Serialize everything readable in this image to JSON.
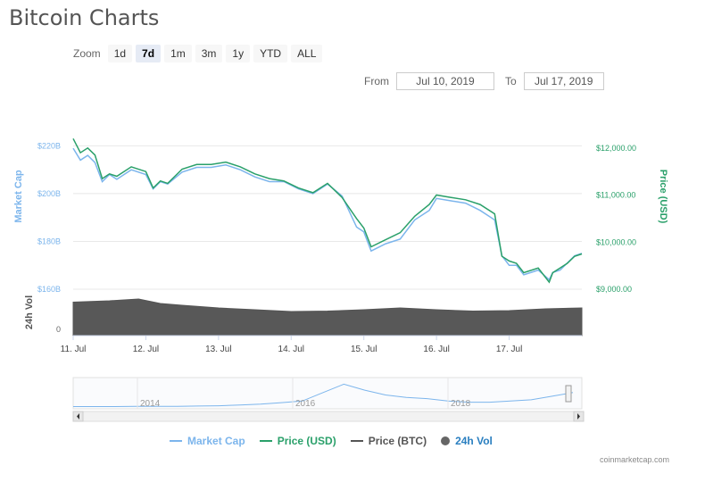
{
  "page": {
    "title": "Bitcoin Charts"
  },
  "zoom": {
    "label": "Zoom",
    "buttons": [
      "1d",
      "7d",
      "1m",
      "3m",
      "1y",
      "YTD",
      "ALL"
    ],
    "active": "7d"
  },
  "range": {
    "from_label": "From",
    "from_value": "Jul 10, 2019",
    "to_label": "To",
    "to_value": "Jul 17, 2019"
  },
  "legend": {
    "items": [
      {
        "label": "Market Cap",
        "color": "#7cb5ec",
        "shape": "line"
      },
      {
        "label": "Price (USD)",
        "color": "#2aa06a",
        "shape": "line"
      },
      {
        "label": "Price (BTC)",
        "color": "#555555",
        "shape": "line"
      },
      {
        "label": "24h Vol",
        "color": "#666666",
        "shape": "dot"
      }
    ]
  },
  "credit": "coinmarketcap.com",
  "chart_data": {
    "type": "line",
    "x_tick_labels": [
      "11. Jul",
      "12. Jul",
      "13. Jul",
      "14. Jul",
      "15. Jul",
      "16. Jul",
      "17. Jul"
    ],
    "left_axis": {
      "label": "Market Cap",
      "ticks": [
        "$220B",
        "$200B",
        "$180B",
        "$160B"
      ],
      "range": [
        160,
        225
      ],
      "unit": "B USD"
    },
    "right_axis": {
      "label": "Price (USD)",
      "ticks": [
        "$12,000.00",
        "$11,000.00",
        "$10,000.00",
        "$9,000.00"
      ],
      "range": [
        9000,
        12300
      ]
    },
    "volume_axis": {
      "label": "24h Vol",
      "ticks": [
        "0"
      ]
    },
    "x_range_days": [
      0,
      7
    ],
    "series": [
      {
        "name": "Market Cap",
        "color": "#7cb5ec",
        "x": [
          0,
          0.1,
          0.2,
          0.3,
          0.4,
          0.5,
          0.6,
          0.8,
          1.0,
          1.1,
          1.2,
          1.3,
          1.5,
          1.7,
          1.9,
          2.1,
          2.3,
          2.5,
          2.7,
          2.9,
          3.1,
          3.3,
          3.5,
          3.7,
          3.9,
          4.0,
          4.1,
          4.3,
          4.5,
          4.7,
          4.9,
          5.0,
          5.2,
          5.4,
          5.6,
          5.8,
          5.9,
          6.0,
          6.1,
          6.2,
          6.4,
          6.55,
          6.6,
          6.7,
          6.8,
          6.9,
          7.0
        ],
        "values": [
          219,
          214,
          216,
          213,
          205,
          208,
          206,
          210,
          208,
          202,
          205,
          204,
          209,
          211,
          211,
          212,
          210,
          207,
          205,
          205,
          202,
          200,
          204,
          199,
          186,
          184,
          176,
          179,
          181,
          189,
          193,
          198,
          197,
          196,
          193,
          189,
          174,
          170,
          170,
          166,
          168,
          164,
          167,
          168,
          171,
          174,
          175
        ]
      },
      {
        "name": "Price (USD)",
        "color": "#2aa06a",
        "x": [
          0,
          0.1,
          0.2,
          0.3,
          0.4,
          0.5,
          0.6,
          0.8,
          1.0,
          1.1,
          1.2,
          1.3,
          1.5,
          1.7,
          1.9,
          2.1,
          2.3,
          2.5,
          2.7,
          2.9,
          3.1,
          3.3,
          3.5,
          3.7,
          3.9,
          4.0,
          4.1,
          4.3,
          4.5,
          4.7,
          4.9,
          5.0,
          5.2,
          5.4,
          5.6,
          5.8,
          5.9,
          6.0,
          6.1,
          6.2,
          6.4,
          6.55,
          6.6,
          6.7,
          6.8,
          6.9,
          7.0
        ],
        "values": [
          12200,
          11900,
          12000,
          11850,
          11350,
          11450,
          11400,
          11600,
          11500,
          11150,
          11300,
          11250,
          11550,
          11650,
          11650,
          11700,
          11600,
          11450,
          11350,
          11300,
          11150,
          11050,
          11250,
          10950,
          10500,
          10300,
          9900,
          10050,
          10200,
          10550,
          10800,
          11000,
          10950,
          10900,
          10800,
          10600,
          9700,
          9600,
          9550,
          9350,
          9450,
          9150,
          9350,
          9450,
          9550,
          9700,
          9750
        ]
      },
      {
        "name": "24h Vol",
        "color": "#555555",
        "x": [
          0,
          0.5,
          0.9,
          1.2,
          1.5,
          2.0,
          2.5,
          3.0,
          3.5,
          4.0,
          4.5,
          5.0,
          5.5,
          6.0,
          6.5,
          7.0
        ],
        "values": [
          0.75,
          0.78,
          0.82,
          0.72,
          0.68,
          0.62,
          0.58,
          0.54,
          0.55,
          0.58,
          0.62,
          0.58,
          0.55,
          0.56,
          0.6,
          0.62
        ]
      }
    ],
    "navigator": {
      "x_tick_labels": [
        "2014",
        "2016",
        "2018"
      ],
      "values": [
        0.02,
        0.02,
        0.02,
        0.025,
        0.03,
        0.03,
        0.04,
        0.05,
        0.08,
        0.12,
        0.18,
        0.25,
        0.6,
        0.95,
        0.7,
        0.5,
        0.4,
        0.35,
        0.25,
        0.2,
        0.2,
        0.25,
        0.3,
        0.45,
        0.6
      ]
    }
  }
}
